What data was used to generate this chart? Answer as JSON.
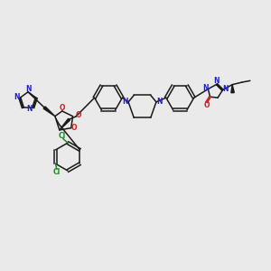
{
  "background_color": "#eaeaea",
  "figsize": [
    3.0,
    3.0
  ],
  "dpi": 100,
  "bond_color": "#1a1a1a",
  "N_color": "#2222cc",
  "O_color": "#cc2222",
  "Cl_color": "#228822",
  "xlim": [
    0,
    14
  ],
  "ylim": [
    0,
    14
  ]
}
